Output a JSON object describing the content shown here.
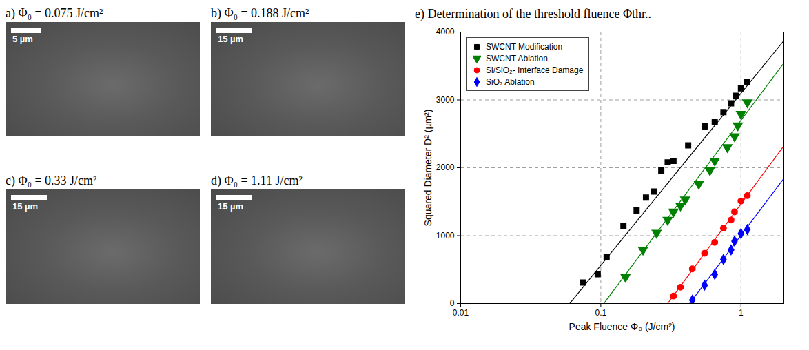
{
  "images": [
    {
      "title": "a) Φ₀ = 0.075 J/cm²",
      "scale_bar": "5 µm"
    },
    {
      "title": "b) Φ₀ = 0.188 J/cm²",
      "scale_bar": "15 µm"
    },
    {
      "title": "c) Φ₀ = 0.33 J/cm²",
      "scale_bar": "15 µm"
    },
    {
      "title": "d) Φ₀ = 1.11 J/cm²",
      "scale_bar": "15 µm"
    }
  ],
  "chart_data": {
    "type": "scatter",
    "title": "e) Determination of the threshold fluence Φthr..",
    "x_label": "Peak Fluence Φ₀ (J/cm²)",
    "y_label": "Squared Diameter D² (µm²)",
    "log": "x",
    "xlim": [
      0.01,
      2
    ],
    "xticks": [
      0.01,
      0.1,
      1
    ],
    "ylim": [
      0,
      4000
    ],
    "yticks": [
      0,
      1000,
      2000,
      3000,
      4000
    ],
    "grid": true,
    "legend": "top-left",
    "series": [
      {
        "name": "SWCNT Modification",
        "color": "#000000",
        "marker": "square",
        "x": [
          0.075,
          0.095,
          0.11,
          0.145,
          0.18,
          0.21,
          0.24,
          0.27,
          0.3,
          0.33,
          0.42,
          0.55,
          0.65,
          0.75,
          0.85,
          0.92,
          1.0,
          1.11
        ],
        "values": [
          310,
          430,
          690,
          1140,
          1370,
          1560,
          1650,
          1960,
          2080,
          2100,
          2330,
          2610,
          2680,
          2820,
          2950,
          3060,
          3170,
          3270
        ],
        "fit": {
          "x": [
            0.06,
            2
          ],
          "values": [
            0,
            3860
          ]
        }
      },
      {
        "name": "SWCNT Ablation",
        "color": "#008000",
        "marker": "triangle-down",
        "x": [
          0.15,
          0.2,
          0.25,
          0.3,
          0.33,
          0.37,
          0.4,
          0.5,
          0.6,
          0.65,
          0.8,
          0.9,
          0.95,
          1.0,
          1.11
        ],
        "values": [
          390,
          790,
          1040,
          1230,
          1350,
          1440,
          1530,
          1760,
          1960,
          2100,
          2300,
          2460,
          2620,
          2790,
          2960
        ],
        "fit": {
          "x": [
            0.105,
            2
          ],
          "values": [
            0,
            3530
          ]
        }
      },
      {
        "name": "Si/SiO₂- Interface Damage",
        "color": "#ff0000",
        "marker": "circle",
        "x": [
          0.33,
          0.37,
          0.45,
          0.55,
          0.65,
          0.75,
          0.85,
          0.9,
          1.0,
          1.11
        ],
        "values": [
          110,
          240,
          510,
          740,
          900,
          1110,
          1230,
          1350,
          1510,
          1590
        ],
        "fit": {
          "x": [
            0.3,
            2
          ],
          "values": [
            0,
            2310
          ]
        }
      },
      {
        "name": "SiO₂ Ablation",
        "color": "#0000ff",
        "marker": "diamond",
        "x": [
          0.45,
          0.55,
          0.65,
          0.75,
          0.85,
          0.9,
          1.0,
          1.11
        ],
        "values": [
          50,
          270,
          430,
          650,
          790,
          920,
          1030,
          1090
        ],
        "fit": {
          "x": [
            0.43,
            2
          ],
          "values": [
            0,
            1830
          ]
        }
      }
    ]
  }
}
